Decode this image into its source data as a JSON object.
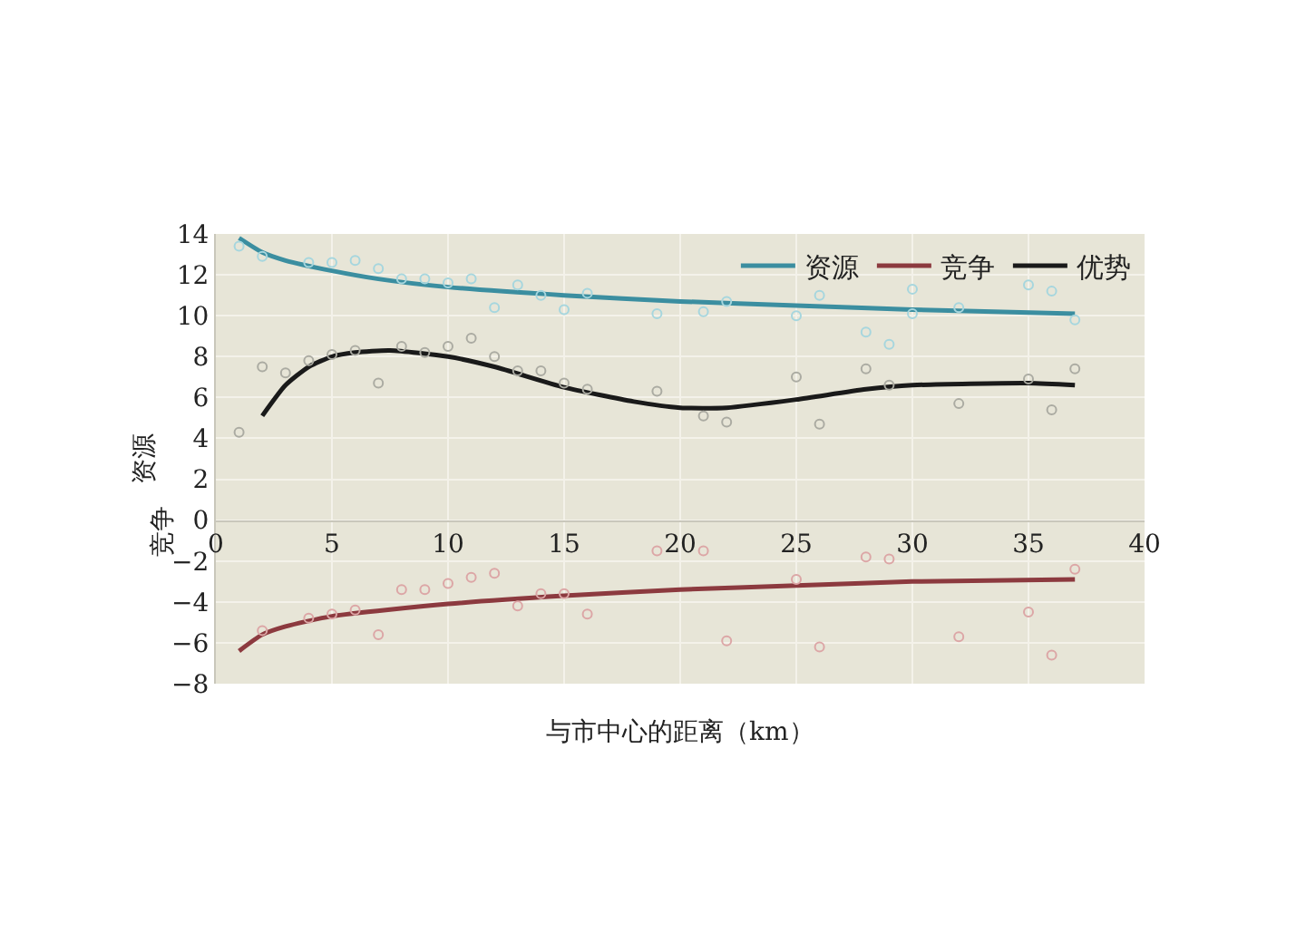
{
  "chart_data": {
    "type": "line",
    "xlabel": "与市中心的距离（km）",
    "ylabel": "资源",
    "annotations": [
      "竞争"
    ],
    "xlim": [
      0,
      40
    ],
    "xticks": [
      0,
      5,
      10,
      15,
      20,
      25,
      30,
      35,
      40
    ],
    "ylim": [
      -8,
      14
    ],
    "yticks": [
      -8,
      -6,
      -4,
      -2,
      0,
      2,
      4,
      6,
      8,
      10,
      12,
      14
    ],
    "grid": true,
    "legend": "top right",
    "series": [
      {
        "type": "scatter",
        "color": "#a6d6de",
        "marker": "circle",
        "x": [
          1,
          2,
          4,
          5,
          6,
          7,
          8,
          9,
          10,
          11,
          12,
          13,
          14,
          15,
          16,
          19,
          21,
          22,
          25,
          26,
          28,
          29,
          30,
          30,
          32,
          35,
          36,
          37
        ],
        "values": [
          13.4,
          12.9,
          12.6,
          12.6,
          12.7,
          12.3,
          11.8,
          11.8,
          11.6,
          11.8,
          10.4,
          11.5,
          11.0,
          10.3,
          11.1,
          10.1,
          10.2,
          10.7,
          10.0,
          11.0,
          9.2,
          8.6,
          11.3,
          10.1,
          10.4,
          11.5,
          11.2,
          9.8
        ]
      },
      {
        "type": "scatter",
        "color": "#ababa2",
        "marker": "circle",
        "x": [
          1,
          2,
          3,
          4,
          5,
          6,
          7,
          8,
          9,
          10,
          11,
          12,
          13,
          14,
          15,
          16,
          19,
          21,
          22,
          25,
          26,
          28,
          29,
          32,
          35,
          36,
          37
        ],
        "values": [
          4.3,
          7.5,
          7.2,
          7.8,
          8.1,
          8.3,
          6.7,
          8.5,
          8.2,
          8.5,
          8.9,
          8.0,
          7.3,
          7.3,
          6.7,
          6.4,
          6.3,
          5.1,
          4.8,
          7.0,
          4.7,
          7.4,
          6.6,
          5.7,
          6.9,
          5.4,
          7.4
        ]
      },
      {
        "type": "scatter",
        "color": "#dca6a6",
        "marker": "circle",
        "x": [
          2,
          4,
          5,
          6,
          7,
          8,
          9,
          10,
          11,
          12,
          13,
          14,
          15,
          16,
          19,
          21,
          22,
          25,
          26,
          28,
          29,
          32,
          35,
          36,
          37
        ],
        "values": [
          -5.4,
          -4.8,
          -4.6,
          -4.4,
          -5.6,
          -3.4,
          -3.4,
          -3.1,
          -2.8,
          -2.6,
          -4.2,
          -3.6,
          -3.6,
          -4.6,
          -1.5,
          -1.5,
          -5.9,
          -2.9,
          -6.2,
          -1.8,
          -1.9,
          -5.7,
          -4.5,
          -6.6,
          -2.4
        ]
      },
      {
        "name": "资源",
        "color": "#3b8ea0",
        "marker": "none",
        "x": [
          1,
          2,
          3,
          5,
          7,
          10,
          15,
          20,
          25,
          30,
          37
        ],
        "values": [
          13.8,
          13.1,
          12.7,
          12.2,
          11.8,
          11.4,
          11.0,
          10.7,
          10.5,
          10.3,
          10.1
        ]
      },
      {
        "name": "竞争",
        "color": "#8c3a3f",
        "marker": "none",
        "x": [
          1,
          2,
          3,
          5,
          10,
          15,
          20,
          25,
          30,
          37
        ],
        "values": [
          -6.4,
          -5.6,
          -5.2,
          -4.7,
          -4.1,
          -3.7,
          -3.4,
          -3.2,
          -3.0,
          -2.9
        ]
      },
      {
        "name": "优势",
        "color": "#1a1a1a",
        "marker": "none",
        "x": [
          2,
          3,
          4,
          5,
          6,
          7.5,
          10,
          12,
          15,
          18,
          20,
          22,
          25,
          28,
          30,
          35,
          37
        ],
        "values": [
          5.1,
          6.6,
          7.5,
          8.0,
          8.2,
          8.3,
          8.0,
          7.5,
          6.5,
          5.8,
          5.5,
          5.5,
          5.9,
          6.4,
          6.6,
          6.7,
          6.6
        ]
      }
    ]
  }
}
